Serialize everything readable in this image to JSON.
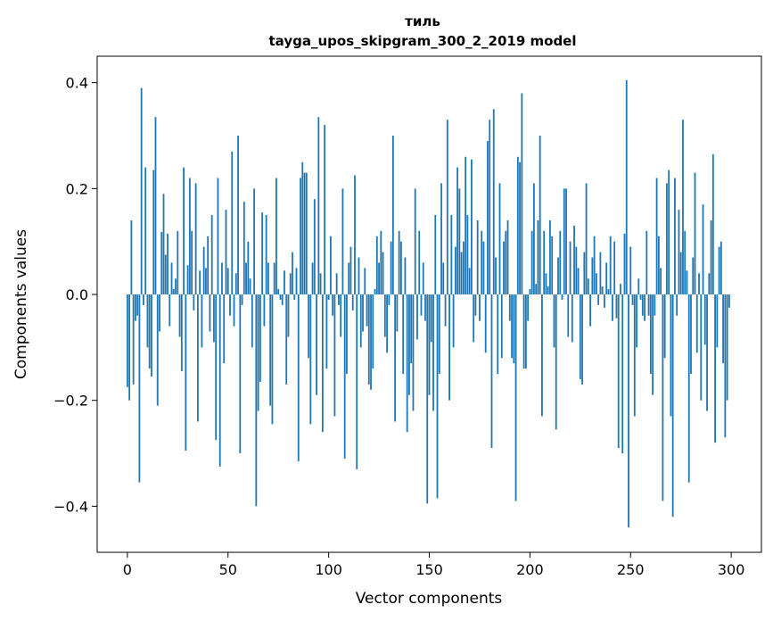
{
  "chart_data": {
    "type": "bar",
    "title": "тиль",
    "subtitle": "tayga_upos_skipgram_300_2_2019 model",
    "xlabel": "Vector components",
    "ylabel": "Components values",
    "xlim": [
      -15,
      315
    ],
    "ylim": [
      -0.487,
      0.45
    ],
    "xticks": [
      0,
      50,
      100,
      150,
      200,
      250,
      300
    ],
    "yticks": [
      -0.4,
      -0.2,
      0.0,
      0.2,
      0.4
    ],
    "xtick_labels": [
      "0",
      "50",
      "100",
      "150",
      "200",
      "250",
      "300"
    ],
    "ytick_labels": [
      "−0.4",
      "−0.2",
      "0.0",
      "0.2",
      "0.4"
    ],
    "grid": false,
    "legend": "none",
    "bar_color": "#1f77b4",
    "values": [
      -0.175,
      -0.2,
      0.14,
      -0.17,
      -0.05,
      -0.04,
      -0.355,
      0.39,
      -0.02,
      0.24,
      -0.1,
      -0.14,
      -0.155,
      0.235,
      0.335,
      -0.21,
      -0.07,
      0.118,
      0.19,
      0.075,
      0.115,
      -0.06,
      0.06,
      0.01,
      0.03,
      0.12,
      -0.08,
      -0.145,
      0.24,
      -0.295,
      0.055,
      0.22,
      0.12,
      -0.03,
      0.21,
      -0.24,
      0.045,
      -0.1,
      0.09,
      0.05,
      0.11,
      -0.07,
      0.15,
      -0.09,
      -0.275,
      0.22,
      -0.325,
      0.06,
      -0.13,
      0.16,
      0.05,
      -0.04,
      0.27,
      -0.06,
      0.04,
      0.3,
      -0.3,
      -0.02,
      0.175,
      0.06,
      0.1,
      0.03,
      -0.1,
      0.2,
      -0.4,
      -0.22,
      -0.165,
      0.155,
      -0.06,
      0.15,
      0.06,
      -0.21,
      -0.245,
      0.06,
      0.22,
      0.01,
      -0.01,
      -0.02,
      0.045,
      -0.17,
      -0.08,
      0.04,
      0.08,
      -0.01,
      0.05,
      -0.315,
      0.22,
      0.25,
      0.23,
      0.23,
      -0.12,
      -0.245,
      0.06,
      0.18,
      -0.19,
      0.335,
      0.04,
      -0.26,
      0.32,
      -0.14,
      -0.01,
      0.11,
      -0.04,
      -0.23,
      0.04,
      -0.02,
      -0.08,
      0.2,
      -0.31,
      -0.15,
      0.06,
      0.09,
      -0.03,
      0.225,
      -0.33,
      0.07,
      -0.1,
      -0.07,
      0.05,
      -0.06,
      -0.17,
      -0.18,
      -0.14,
      0.01,
      0.11,
      0.06,
      0.12,
      0.08,
      -0.08,
      -0.11,
      -0.02,
      0.1,
      0.3,
      -0.24,
      -0.07,
      0.12,
      0.1,
      -0.15,
      0.07,
      -0.26,
      -0.19,
      -0.13,
      -0.22,
      0.2,
      -0.085,
      0.12,
      -0.04,
      0.06,
      -0.05,
      -0.395,
      -0.19,
      -0.09,
      -0.22,
      0.15,
      -0.385,
      -0.15,
      0.21,
      0.06,
      -0.06,
      0.33,
      -0.2,
      0.15,
      -0.1,
      0.09,
      0.24,
      0.2,
      0.08,
      0.1,
      0.26,
      0.15,
      0.05,
      0.255,
      -0.09,
      -0.04,
      0.14,
      -0.05,
      0.12,
      0.1,
      -0.11,
      0.29,
      0.33,
      -0.29,
      0.35,
      0.07,
      -0.15,
      0.21,
      -0.12,
      0.1,
      0.12,
      0.14,
      -0.05,
      -0.12,
      -0.13,
      -0.39,
      0.26,
      0.25,
      0.38,
      -0.14,
      -0.14,
      -0.05,
      0.01,
      0.12,
      0.21,
      0.02,
      0.14,
      0.3,
      -0.23,
      0.12,
      0.04,
      0.015,
      0.14,
      0.11,
      -0.1,
      -0.255,
      0.07,
      0.12,
      -0.01,
      0.2,
      0.2,
      -0.08,
      0.1,
      -0.09,
      0.13,
      0.09,
      0.05,
      -0.16,
      -0.17,
      0.08,
      0.21,
      0.03,
      -0.06,
      0.07,
      0.11,
      0.04,
      -0.02,
      0.08,
      0.015,
      -0.025,
      0.06,
      0.01,
      0.11,
      -0.05,
      0.1,
      -0.045,
      -0.29,
      0.02,
      -0.3,
      0.115,
      0.405,
      -0.44,
      0.09,
      -0.02,
      -0.23,
      -0.1,
      0.03,
      -0.01,
      -0.04,
      -0.05,
      0.12,
      -0.04,
      -0.15,
      -0.19,
      -0.04,
      0.22,
      0.11,
      0.05,
      -0.39,
      -0.12,
      0.21,
      0.235,
      -0.23,
      -0.42,
      0.22,
      -0.04,
      0.16,
      0.08,
      0.33,
      0.12,
      0.045,
      -0.355,
      -0.15,
      0.07,
      0.23,
      -0.11,
      0.04,
      -0.2,
      0.17,
      -0.095,
      -0.22,
      0.04,
      0.14,
      0.265,
      -0.28,
      -0.1,
      0.09,
      0.1,
      -0.13,
      -0.27,
      -0.2,
      -0.025
    ]
  }
}
